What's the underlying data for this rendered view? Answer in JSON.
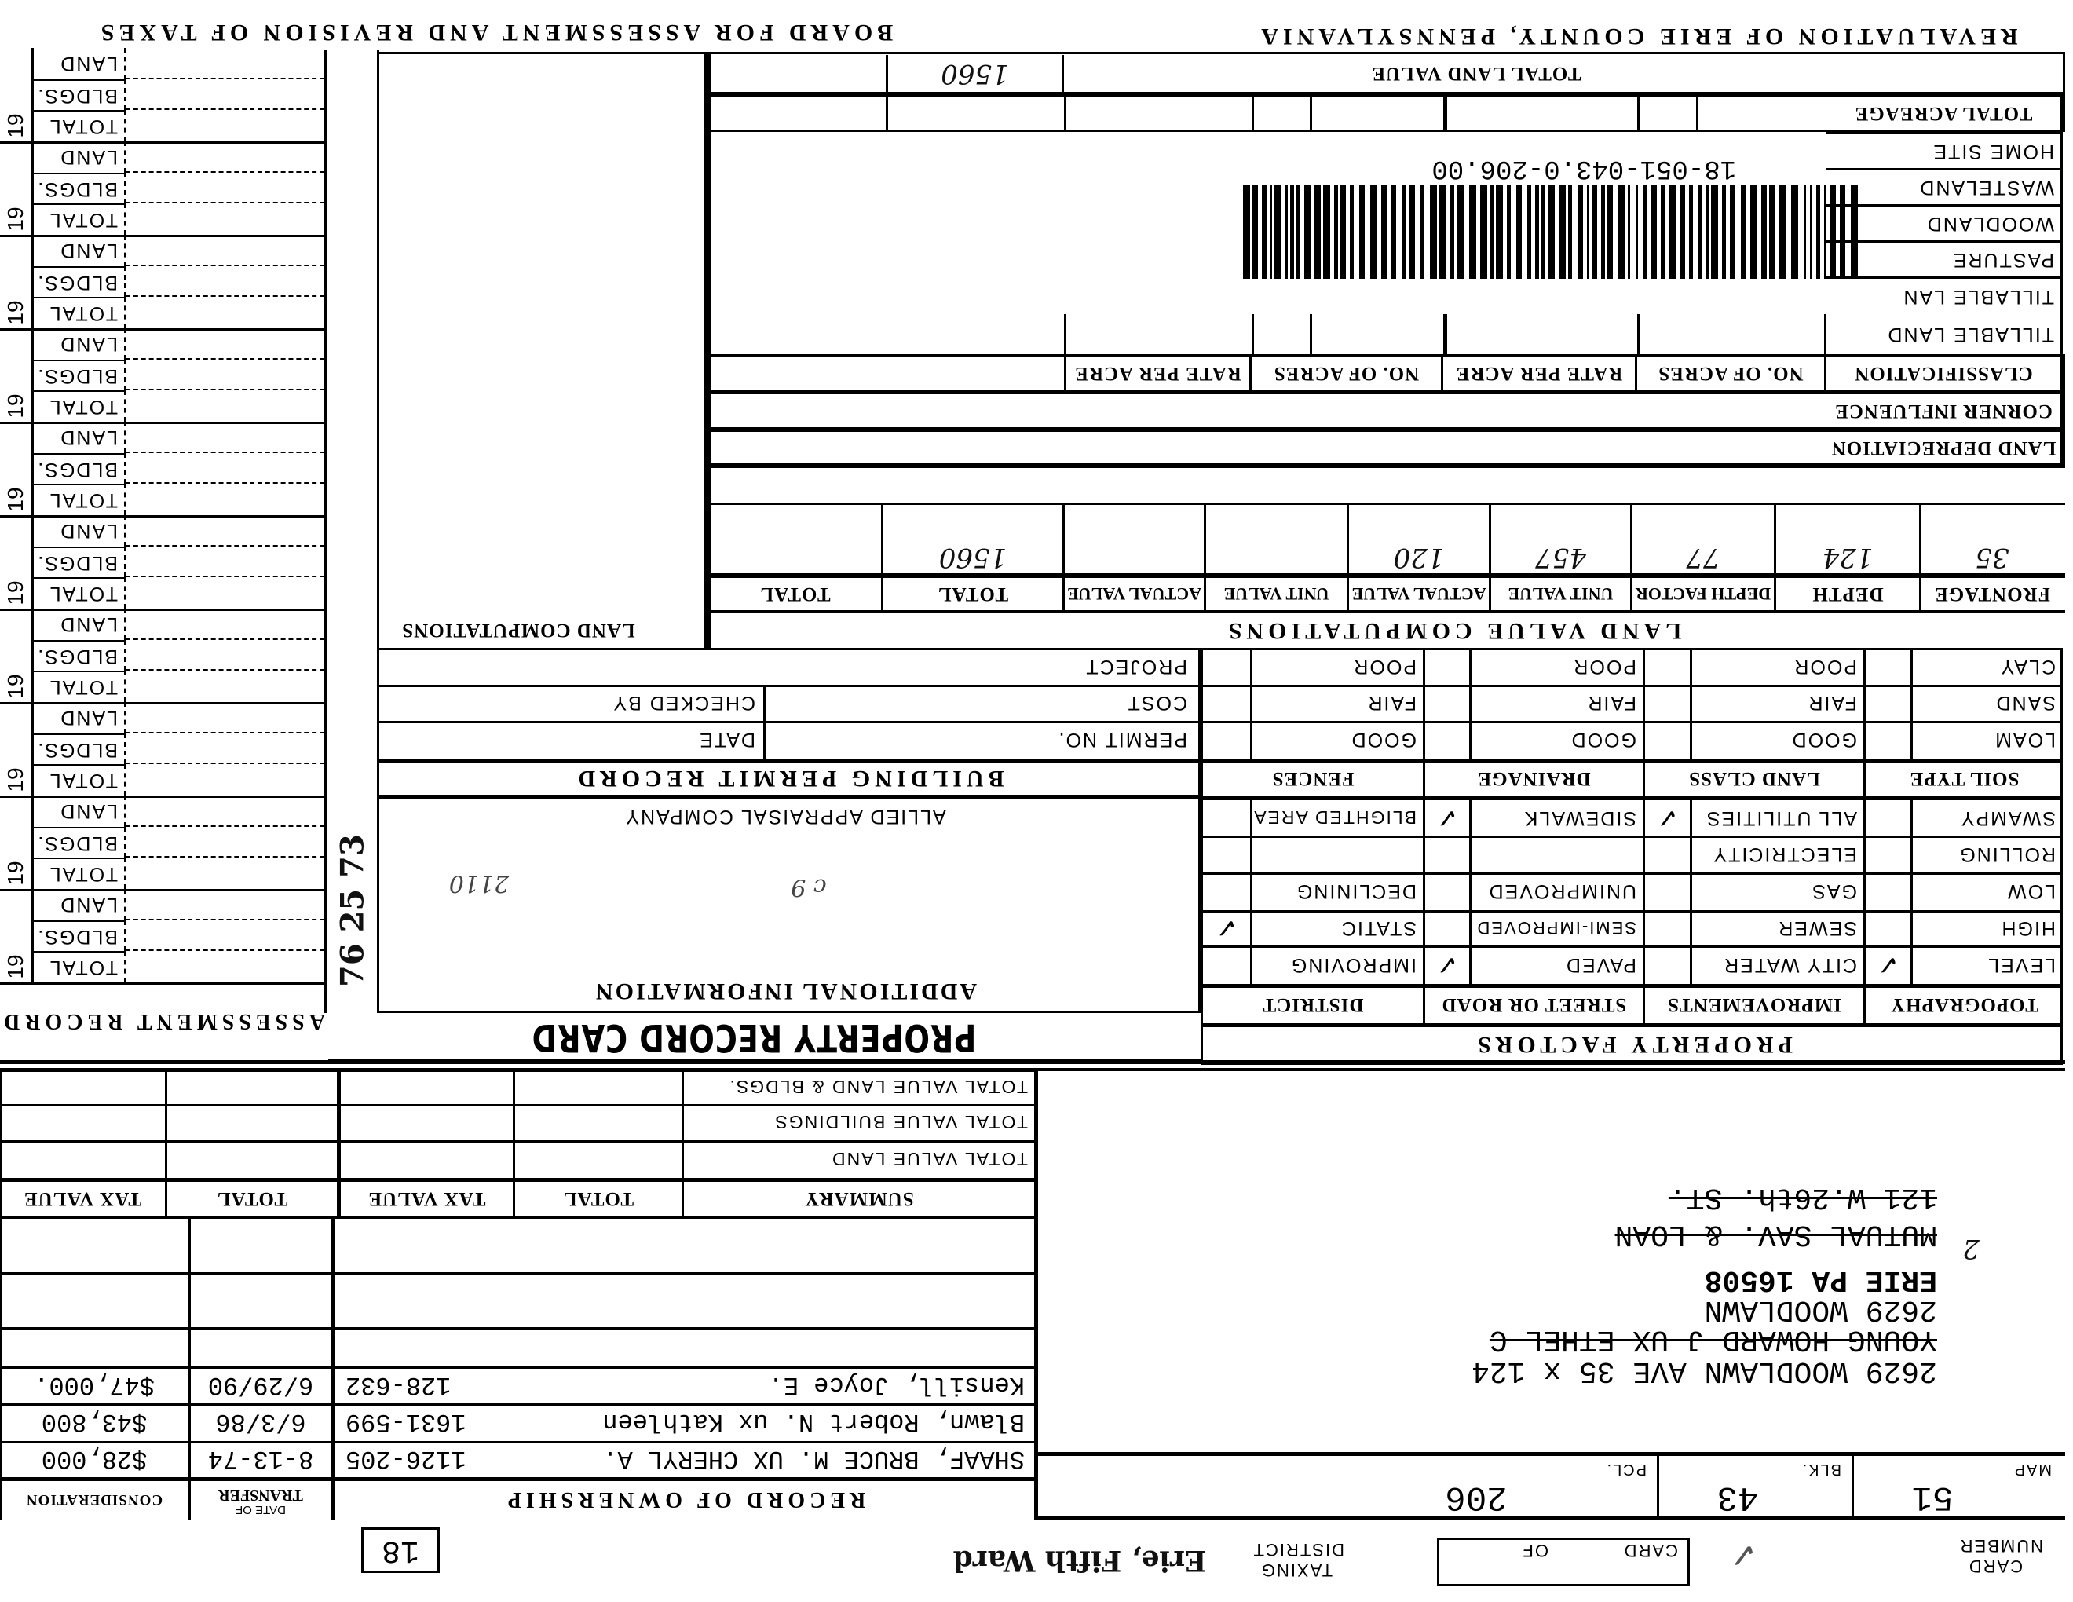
{
  "header": {
    "county_title": "REVALUATION OF ERIE COUNTY, PENNSYLVANIA",
    "board_title": "BOARD FOR ASSESSMENT AND REVISION OF TAXES"
  },
  "land": {
    "total_land_value_label": "TOTAL LAND VALUE",
    "total_land_value_handwritten": "1560",
    "total_acreage_label": "TOTAL ACREAGE",
    "acreage_rows": [
      "HOME SITE",
      "WASTELAND",
      "WOODLAND",
      "PASTURE",
      "TILLABLE LAN",
      "TILLABLE LAND"
    ],
    "classification_headers": [
      "CLASSIFICATION",
      "NO. OF ACRES",
      "RATE PER ACRE",
      "NO. OF ACRES",
      "RATE PER ACRE"
    ],
    "corner_influence_label": "CORNER INFLUENCE",
    "land_depreciation_label": "LAND DEPRECIATION",
    "parcel_id": "18-051-043.0-206.00",
    "computations_label": "LAND COMPUTATIONS"
  },
  "land_value_computations": {
    "title": "LAND VALUE COMPUTATIONS",
    "headers": [
      "FRONTAGE",
      "DEPTH",
      "DEPTH FACTOR",
      "UNIT VALUE",
      "ACTUAL VALUE",
      "UNIT VALUE",
      "ACTUAL VALUE",
      "TOTAL",
      "TOTAL"
    ],
    "values": [
      "35",
      "124",
      "77",
      "457",
      "120",
      "",
      "",
      "1560",
      ""
    ]
  },
  "property_factors": {
    "title": "PROPERTY FACTORS",
    "upper_headers": [
      "SOIL TYPE",
      "LAND CLASS",
      "DRAINAGE",
      "FENCES"
    ],
    "upper_rows": [
      [
        "CLAY",
        "POOR",
        "POOR",
        "POOR"
      ],
      [
        "SAND",
        "FAIR",
        "FAIR",
        "FAIR"
      ],
      [
        "LOAM",
        "GOOD",
        "GOOD",
        "GOOD"
      ]
    ],
    "lower_headers": [
      "TOPOGRAPHY",
      "IMPROVEMENTS",
      "STREET OR ROAD",
      "DISTRICT"
    ],
    "lower_rows": [
      [
        "SWAMPY",
        "ALL UTILITIES",
        "SIDEWALK",
        "BLIGHTED AREA"
      ],
      [
        "ROLLING",
        "ELECTRICITY",
        "",
        ""
      ],
      [
        "LOW",
        "GAS",
        "UNIMPROVED",
        "DECLINING"
      ],
      [
        "HIGH",
        "SEWER",
        "SEMI-IMPROVED",
        "STATIC"
      ],
      [
        "LEVEL",
        "CITY WATER",
        "PAVED",
        "IMPROVING"
      ]
    ],
    "checked": [
      "LEVEL",
      "ALL UTILITIES",
      "SIDEWALK",
      "PAVED",
      "STATIC"
    ],
    "check_mark": "✓"
  },
  "building_permit": {
    "title": "BUILDING PERMIT RECORD",
    "project_label": "PROJECT",
    "cost_label": "COST",
    "checked_by_label": "CHECKED BY",
    "permit_no_label": "PERMIT NO.",
    "date_label": "DATE"
  },
  "additional_info": {
    "company": "ALLIED APPRAISAL COMPANY",
    "title": "ADDITIONAL INFORMATION",
    "notes": [
      "2110",
      "c 9"
    ]
  },
  "card_title": "PROPERTY RECORD CARD",
  "assessment_record": {
    "title": "ASSESSMENT RECORD",
    "year_prefix": "19",
    "row_labels": [
      "TOTAL",
      "BLDGS.",
      "LAND"
    ],
    "handwritten_note": "76 25 73"
  },
  "summary": {
    "title": "SUMMARY",
    "col_total": "TOTAL",
    "col_tax_value": "TAX VALUE",
    "rows": [
      "TOTAL VALUE LAND & BLDGS.",
      "TOTAL VALUE BUILDINGS",
      "TOTAL VALUE LAND"
    ]
  },
  "ownership": {
    "title": "RECORD OF OWNERSHIP",
    "date_header_small": "DATE OF",
    "date_header": "TRANSFER",
    "consideration_header": "CONSIDERATION",
    "records": [
      {
        "name": "SHAAF, BRUCE M. UX CHERYL A.",
        "deed": "1126-205",
        "date": "8-13-74",
        "consideration": "$28,000"
      },
      {
        "name": "Blawn, Robert N. ux Kathleen",
        "deed": "1631-599",
        "date": "6/3/86",
        "consideration": "$43,800"
      },
      {
        "name": "Kensill, Joyce E.",
        "deed": "128-632",
        "date": "6/29/90",
        "consideration": "$47,000."
      }
    ]
  },
  "address_block": {
    "line1": "2629 WOODLAWN AVE 35 x 124",
    "line2_struck": "YOUNG HOWARD J UX ETHEL C",
    "line3": "2629 WOODLAWN",
    "line4": "ERIE PA 16508",
    "line5_handwritten": "2",
    "line6_struck": "MUTUAL SAV. & LOAN",
    "line7_struck": "121 W.26th. ST."
  },
  "parcel": {
    "map_label": "MAP",
    "map": "51",
    "blk_label": "BLK.",
    "blk": "43",
    "pcl_label": "PCL.",
    "pcl": "206"
  },
  "footer": {
    "card_number_label_1": "CARD",
    "card_number_label_2": "NUMBER",
    "card_number_mark": "✓",
    "card_label": "CARD",
    "of_label": "OF",
    "taxing_label": "TAXING",
    "district_label": "DISTRICT",
    "district": "Erie, Fifth Ward",
    "box_number": "18"
  }
}
